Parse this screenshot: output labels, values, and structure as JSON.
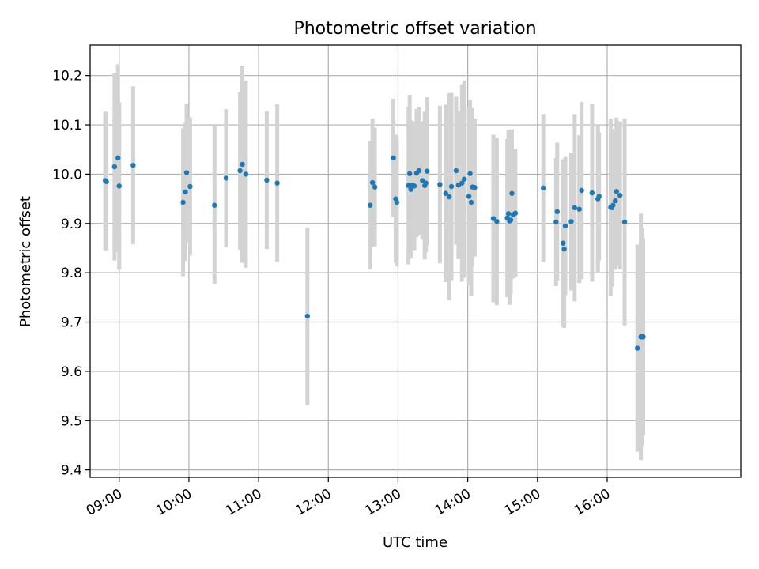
{
  "chart_data": {
    "type": "scatter",
    "title": "Photometric offset variation",
    "xlabel": "UTC time",
    "ylabel": "Photometric offset",
    "x_unit": "UTC hours",
    "xlim": [
      "08:35",
      "17:55"
    ],
    "ylim": [
      9.385,
      10.262
    ],
    "x_ticks": [
      "09:00",
      "10:00",
      "11:00",
      "12:00",
      "13:00",
      "14:00",
      "15:00",
      "16:00"
    ],
    "y_ticks": [
      "9.4",
      "9.5",
      "9.6",
      "9.7",
      "9.8",
      "9.9",
      "10.0",
      "10.1",
      "10.2"
    ],
    "grid": true,
    "colors": {
      "points": "#1f77b4",
      "errorbars": "#d3d3d3",
      "grid": "#b0b0b0"
    },
    "series": [
      {
        "x": [
          "08:48",
          "08:49",
          "08:56",
          "08:59",
          "09:00",
          "09:12",
          "09:55",
          "09:57",
          "09:58",
          "10:01",
          "10:22",
          "10:32",
          "10:44",
          "10:46",
          "10:49",
          "11:07",
          "11:16",
          "11:42",
          "12:36",
          "12:38",
          "12:40",
          "12:56",
          "12:58",
          "12:59",
          "13:09",
          "13:10",
          "13:11",
          "13:12",
          "13:14",
          "13:16",
          "13:18",
          "13:21",
          "13:23",
          "13:24",
          "13:25",
          "13:36",
          "13:41",
          "13:44",
          "13:46",
          "13:50",
          "13:52",
          "13:55",
          "13:57",
          "14:01",
          "14:02",
          "14:03",
          "14:04",
          "14:06",
          "14:22",
          "14:25",
          "14:34",
          "14:35",
          "14:36",
          "14:37",
          "14:38",
          "14:39",
          "14:41",
          "15:05",
          "15:16",
          "15:17",
          "15:22",
          "15:23",
          "15:24",
          "15:29",
          "15:32",
          "15:36",
          "15:38",
          "15:47",
          "15:52",
          "15:53",
          "16:03",
          "16:04",
          "16:05",
          "16:07",
          "16:08",
          "16:11",
          "16:15",
          "16:26",
          "16:29",
          "16:30",
          "16:31"
        ],
        "y": [
          9.987,
          9.985,
          10.015,
          10.033,
          9.976,
          10.018,
          9.943,
          9.964,
          10.003,
          9.975,
          9.937,
          9.992,
          10.007,
          10.02,
          10.0,
          9.988,
          9.982,
          9.712,
          9.937,
          9.983,
          9.974,
          10.033,
          9.95,
          9.943,
          9.977,
          10.001,
          9.969,
          9.978,
          9.976,
          10.002,
          10.007,
          9.987,
          9.977,
          9.982,
          10.006,
          9.979,
          9.961,
          9.954,
          9.975,
          10.007,
          9.978,
          9.982,
          9.99,
          9.955,
          10.001,
          9.943,
          9.974,
          9.973,
          9.91,
          9.904,
          9.911,
          9.92,
          9.905,
          9.907,
          9.961,
          9.918,
          9.921,
          9.972,
          9.903,
          9.924,
          9.86,
          9.848,
          9.895,
          9.904,
          9.932,
          9.929,
          9.967,
          9.962,
          9.95,
          9.955,
          9.933,
          9.932,
          9.937,
          9.946,
          9.965,
          9.957,
          9.903,
          9.647,
          9.67,
          9.67,
          9.67
        ],
        "yerr": [
          0.14,
          0.14,
          0.19,
          0.19,
          0.17,
          0.16,
          0.15,
          0.14,
          0.14,
          0.14,
          0.16,
          0.14,
          0.16,
          0.2,
          0.19,
          0.14,
          0.16,
          0.18,
          0.13,
          0.13,
          0.12,
          0.12,
          0.13,
          0.13,
          0.16,
          0.16,
          0.14,
          0.13,
          0.13,
          0.13,
          0.13,
          0.12,
          0.15,
          0.14,
          0.15,
          0.16,
          0.18,
          0.21,
          0.19,
          0.15,
          0.15,
          0.2,
          0.2,
          0.18,
          0.15,
          0.19,
          0.16,
          0.14,
          0.17,
          0.17,
          0.16,
          0.17,
          0.17,
          0.15,
          0.13,
          0.13,
          0.13,
          0.15,
          0.13,
          0.14,
          0.17,
          0.16,
          0.14,
          0.14,
          0.19,
          0.15,
          0.18,
          0.18,
          0.15,
          0.13,
          0.18,
          0.16,
          0.13,
          0.14,
          0.15,
          0.15,
          0.21,
          0.21,
          0.25,
          0.22,
          0.2
        ]
      }
    ]
  }
}
